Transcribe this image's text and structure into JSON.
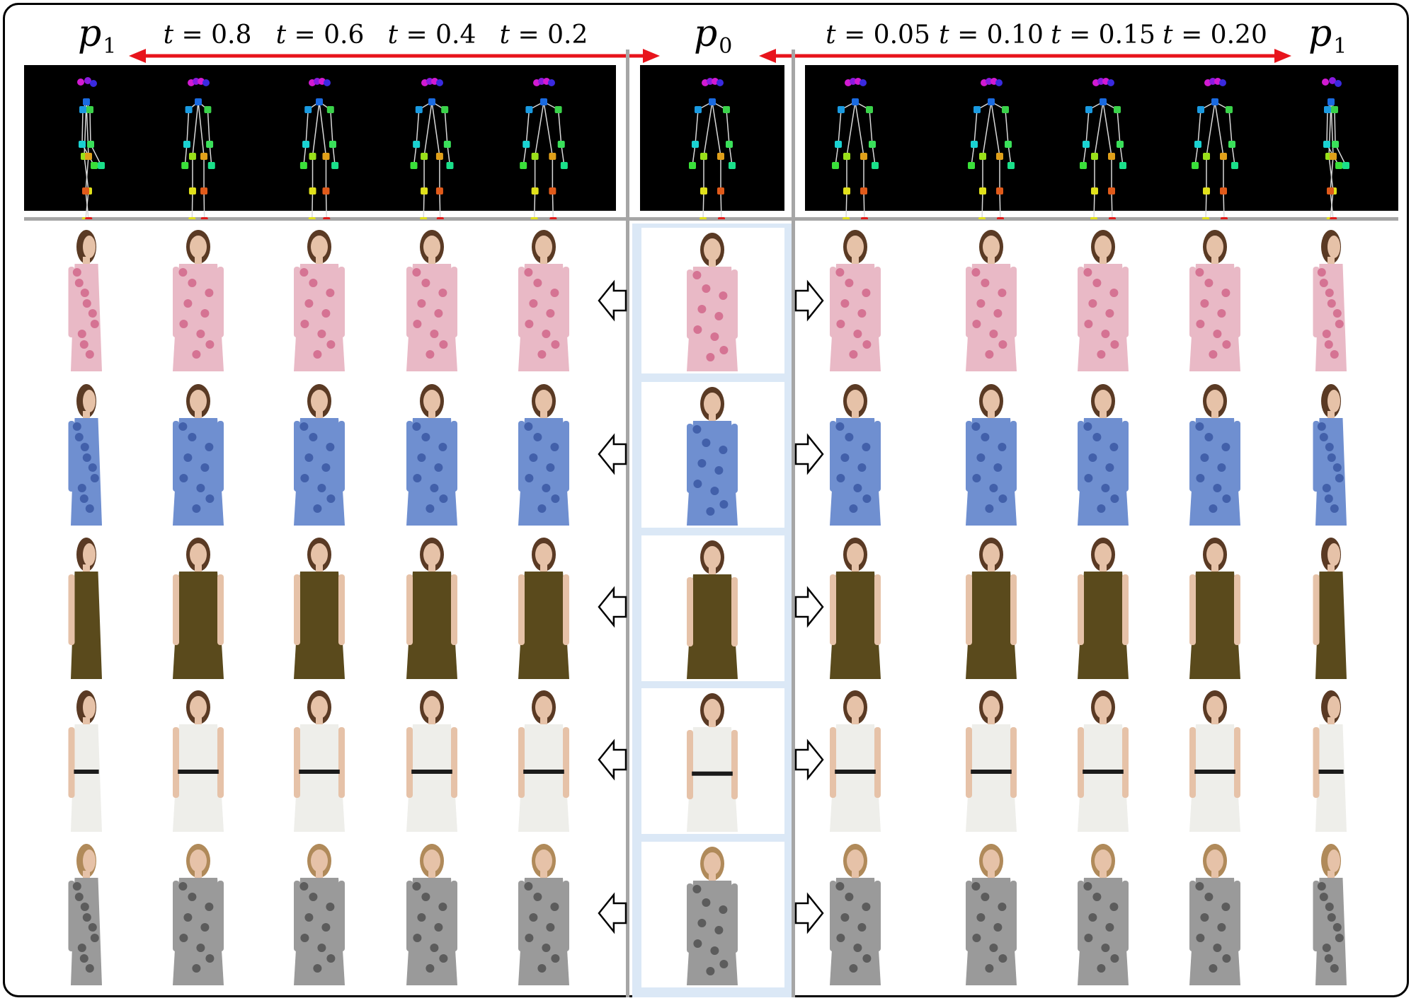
{
  "header": {
    "left_p_label": "p",
    "left_p_sub": "1",
    "center_p_label": "p",
    "center_p_sub": "0",
    "right_p_label": "p",
    "right_p_sub": "1",
    "t_prefix": "t",
    "left_t_values": [
      "= 0.8",
      "= 0.6",
      "= 0.4",
      "= 0.2"
    ],
    "right_t_values": [
      "= 0.05",
      "= 0.10",
      "= 0.15",
      "= 0.20"
    ]
  },
  "colors": {
    "arrow_red": "#e8141c",
    "separator_gray": "#a6a6a6",
    "source_column_bg": "#dbe8f6",
    "skeleton_panel_bg": "#000000",
    "limb_gray": "#d9d9d9"
  },
  "rows": [
    {
      "dress": "pink floral",
      "dress_color": "#e9b9c6",
      "accent": "#c43a6a"
    },
    {
      "dress": "blue floral",
      "dress_color": "#6f8fd0",
      "accent": "#1e3a8a"
    },
    {
      "dress": "olive",
      "dress_color": "#5a4a1c",
      "accent": "#3c3210"
    },
    {
      "dress": "white lace",
      "dress_color": "#eeeeea",
      "accent": "#1a1a1a"
    },
    {
      "dress": "black and white print",
      "dress_color": "#9a9a9a",
      "accent": "#2a2a2a"
    }
  ],
  "icons": [
    "left-hollow-arrow-icon",
    "right-hollow-arrow-icon",
    "red-double-arrow-icon"
  ]
}
